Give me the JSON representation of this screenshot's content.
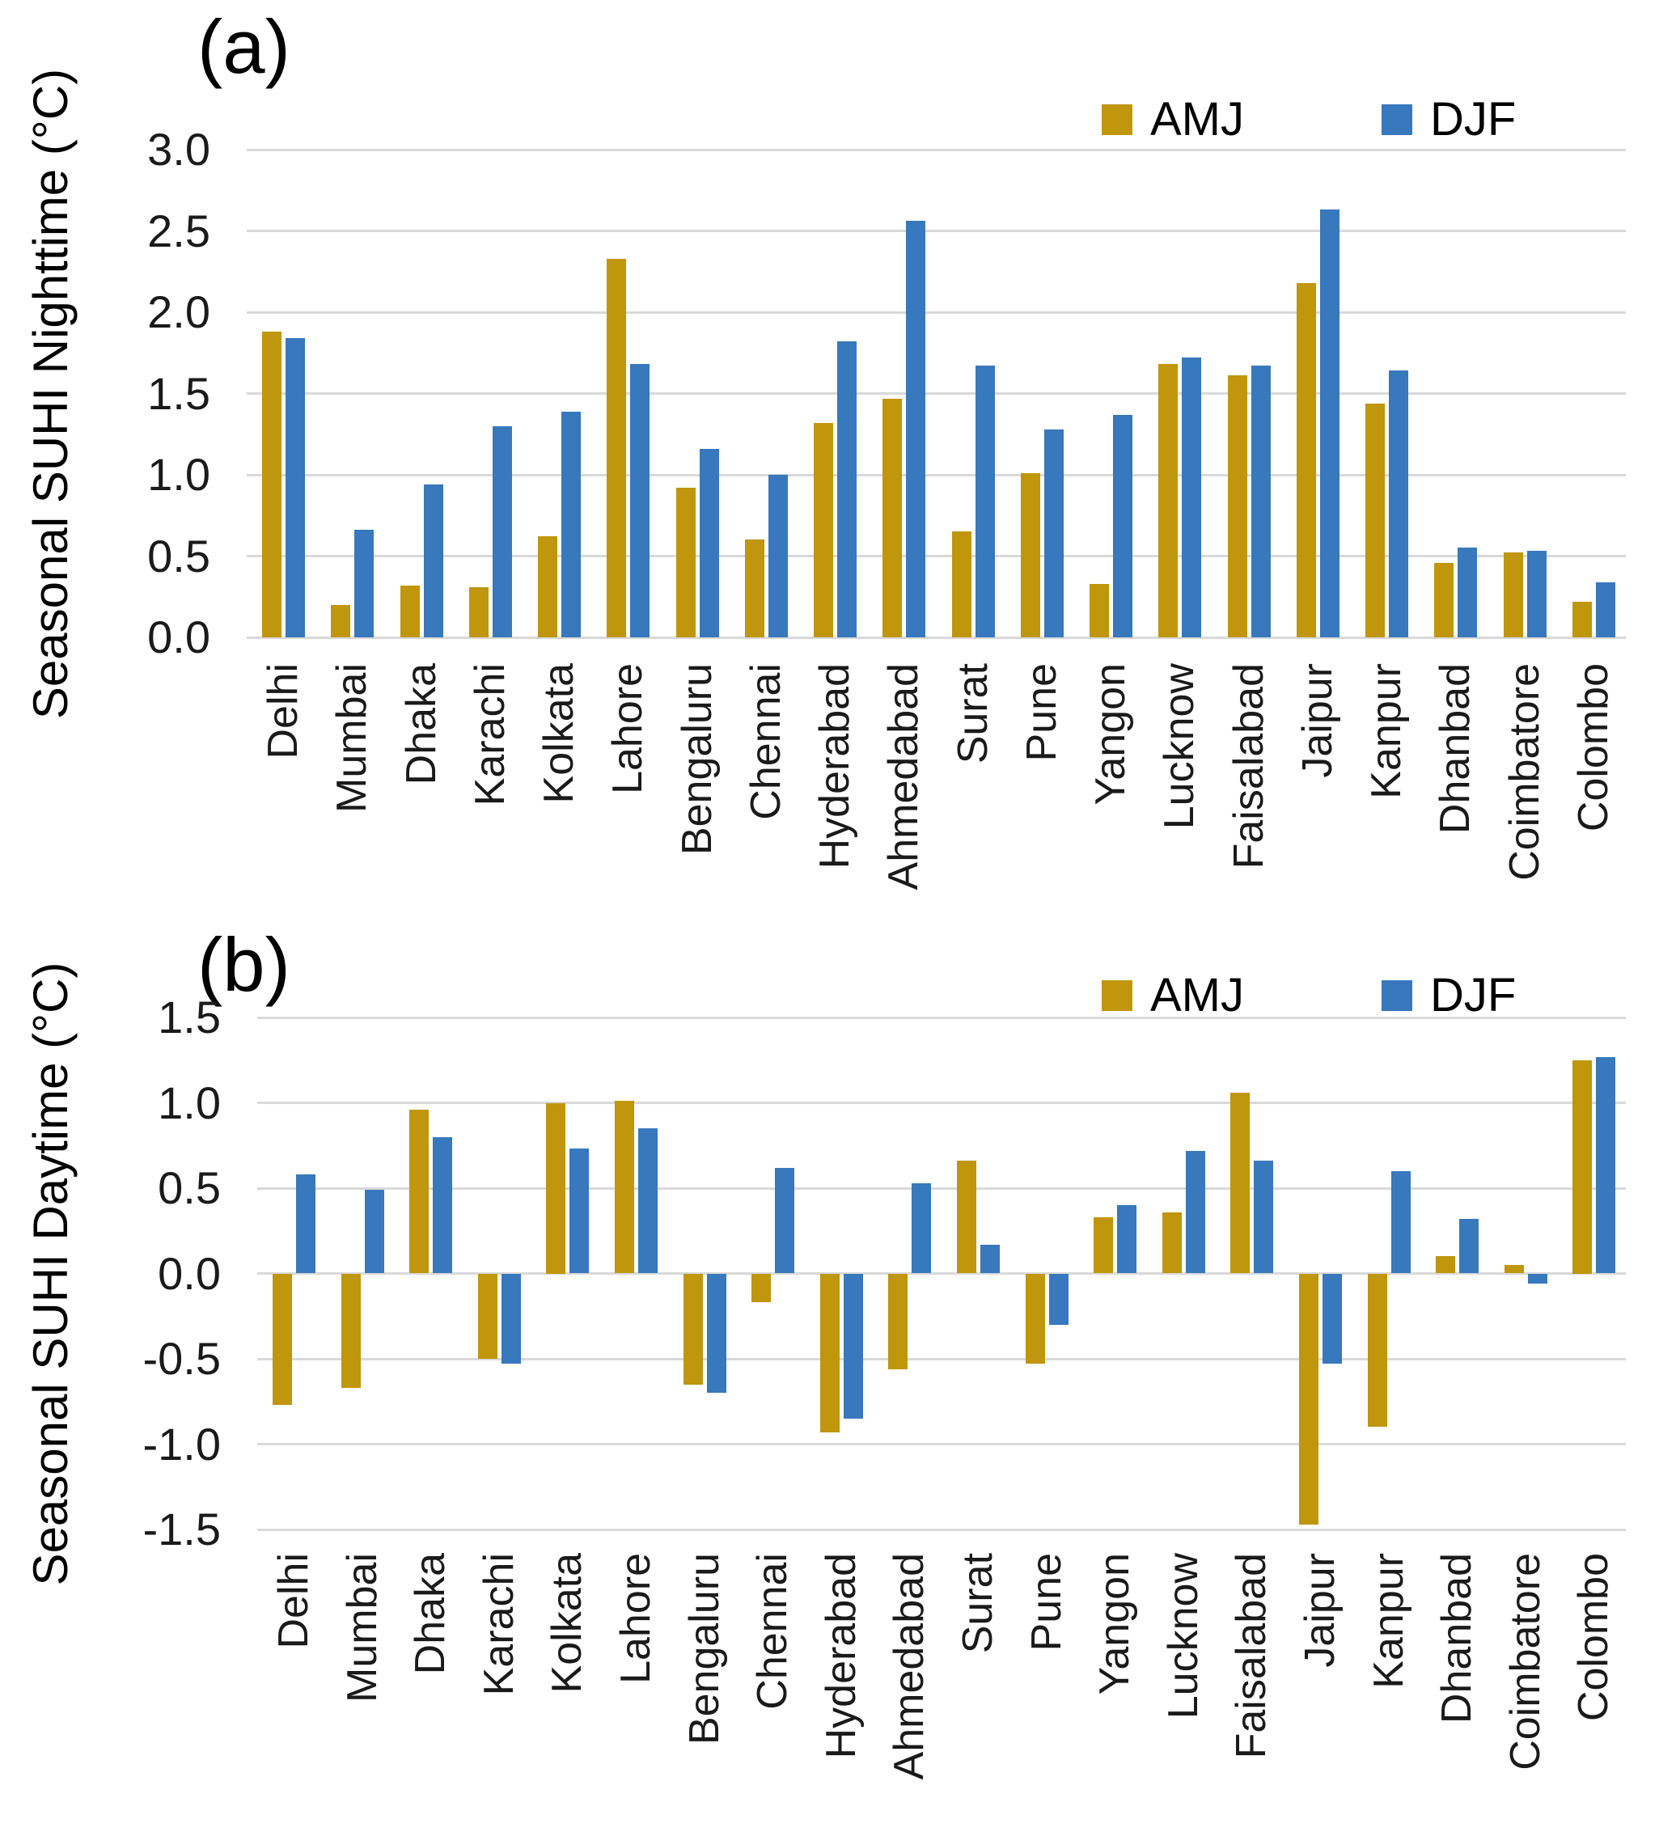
{
  "figure": {
    "background": "#ffffff",
    "gridline_color": "#d9d9d9",
    "amj_color": "#c0960c",
    "djf_color": "#3878bc"
  },
  "chart_data": [
    {
      "type": "bar",
      "panel_label": "(a)",
      "ylabel": "Seasonal SUHI Nighttime (°C)",
      "xlabel": "",
      "title": "",
      "ylim": [
        0.0,
        3.0
      ],
      "grid": true,
      "legend_position": "top-right",
      "y_ticks": [
        "3.0",
        "2.5",
        "2.0",
        "1.5",
        "1.0",
        "0.5",
        "0.0"
      ],
      "categories": [
        "Delhi",
        "Mumbai",
        "Dhaka",
        "Karachi",
        "Kolkata",
        "Lahore",
        "Bengaluru",
        "Chennai",
        "Hyderabad",
        "Ahmedabad",
        "Surat",
        "Pune",
        "Yangon",
        "Lucknow",
        "Faisalabad",
        "Jaipur",
        "Kanpur",
        "Dhanbad",
        "Coimbatore",
        "Colombo"
      ],
      "series": [
        {
          "name": "AMJ",
          "color": "#c0960c",
          "values": [
            1.88,
            0.2,
            0.32,
            0.31,
            0.62,
            2.33,
            0.92,
            0.6,
            1.32,
            1.47,
            0.65,
            1.01,
            0.33,
            1.68,
            1.61,
            2.18,
            1.44,
            0.46,
            0.52,
            0.22
          ]
        },
        {
          "name": "DJF",
          "color": "#3878bc",
          "values": [
            1.84,
            0.66,
            0.94,
            1.3,
            1.39,
            1.68,
            1.16,
            1.0,
            1.82,
            2.56,
            1.67,
            1.28,
            1.37,
            1.72,
            1.67,
            2.63,
            1.64,
            0.55,
            0.53,
            0.34
          ]
        }
      ]
    },
    {
      "type": "bar",
      "panel_label": "(b)",
      "ylabel": "Seasonal SUHI Daytime (°C)",
      "xlabel": "",
      "title": "",
      "ylim": [
        -1.5,
        1.5
      ],
      "grid": true,
      "legend_position": "top-right",
      "y_ticks": [
        "1.5",
        "1.0",
        "0.5",
        "0.0",
        "-0.5",
        "-1.0",
        "-1.5"
      ],
      "categories": [
        "Delhi",
        "Mumbai",
        "Dhaka",
        "Karachi",
        "Kolkata",
        "Lahore",
        "Bengaluru",
        "Chennai",
        "Hyderabad",
        "Ahmedabad",
        "Surat",
        "Pune",
        "Yangon",
        "Lucknow",
        "Faisalabad",
        "Jaipur",
        "Kanpur",
        "Dhanbad",
        "Coimbatore",
        "Colombo"
      ],
      "series": [
        {
          "name": "AMJ",
          "color": "#c0960c",
          "values": [
            -0.77,
            -0.67,
            0.96,
            -0.5,
            1.0,
            1.01,
            -0.65,
            -0.17,
            -0.93,
            -0.56,
            0.66,
            -0.53,
            0.33,
            0.36,
            1.06,
            -1.47,
            -0.9,
            0.1,
            0.05,
            1.25
          ]
        },
        {
          "name": "DJF",
          "color": "#3878bc",
          "values": [
            0.58,
            0.49,
            0.8,
            -0.53,
            0.73,
            0.85,
            -0.7,
            0.62,
            -0.85,
            0.53,
            0.17,
            -0.3,
            0.4,
            0.72,
            0.66,
            -0.53,
            0.6,
            0.32,
            -0.06,
            1.27
          ]
        }
      ]
    }
  ]
}
